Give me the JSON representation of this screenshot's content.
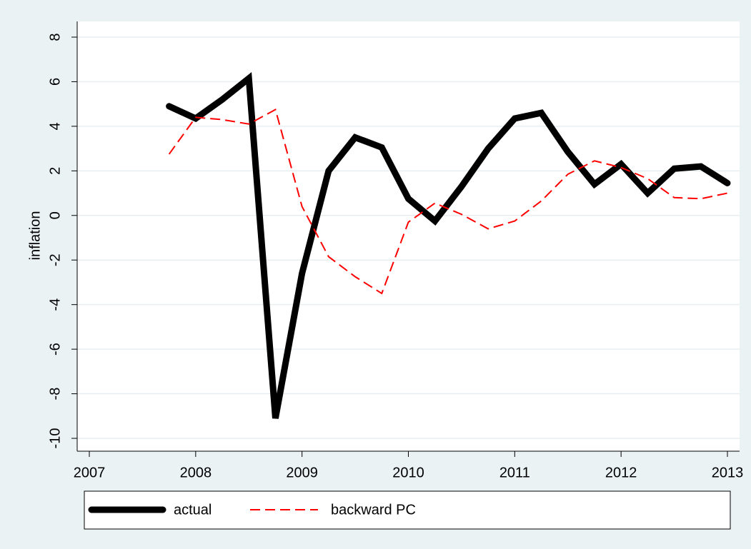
{
  "chart_data": {
    "type": "line",
    "y_label": "inflation",
    "x": [
      2007.75,
      2008,
      2008.25,
      2008.5,
      2008.75,
      2009,
      2009.25,
      2009.5,
      2009.75,
      2010,
      2010.25,
      2010.5,
      2010.75,
      2011,
      2011.25,
      2011.5,
      2011.75,
      2012,
      2012.25,
      2012.5,
      2012.75,
      2013
    ],
    "series": [
      {
        "name": "actual",
        "color": "#000000",
        "dash": false,
        "values": [
          4.9,
          4.35,
          5.2,
          6.15,
          -9.1,
          -2.6,
          2.0,
          3.5,
          3.05,
          0.75,
          -0.25,
          1.3,
          3.0,
          4.35,
          4.6,
          2.85,
          1.4,
          2.3,
          1.0,
          2.1,
          2.2,
          1.45
        ]
      },
      {
        "name": "backward PC",
        "color": "#ff0000",
        "dash": true,
        "values": [
          2.75,
          4.4,
          4.3,
          4.1,
          4.75,
          0.4,
          -1.85,
          -2.75,
          -3.5,
          -0.3,
          0.55,
          0.05,
          -0.6,
          -0.25,
          0.65,
          1.85,
          2.45,
          2.15,
          1.65,
          0.8,
          0.75,
          1.0
        ]
      }
    ],
    "xlim": [
      2007,
      2013
    ],
    "xticks": [
      2007,
      2008,
      2009,
      2010,
      2011,
      2012,
      2013
    ],
    "ylim": [
      -10,
      8
    ],
    "yticks": [
      -10,
      -8,
      -6,
      -4,
      -2,
      0,
      2,
      4,
      6,
      8
    ],
    "grid": true,
    "legend": "bottom"
  }
}
